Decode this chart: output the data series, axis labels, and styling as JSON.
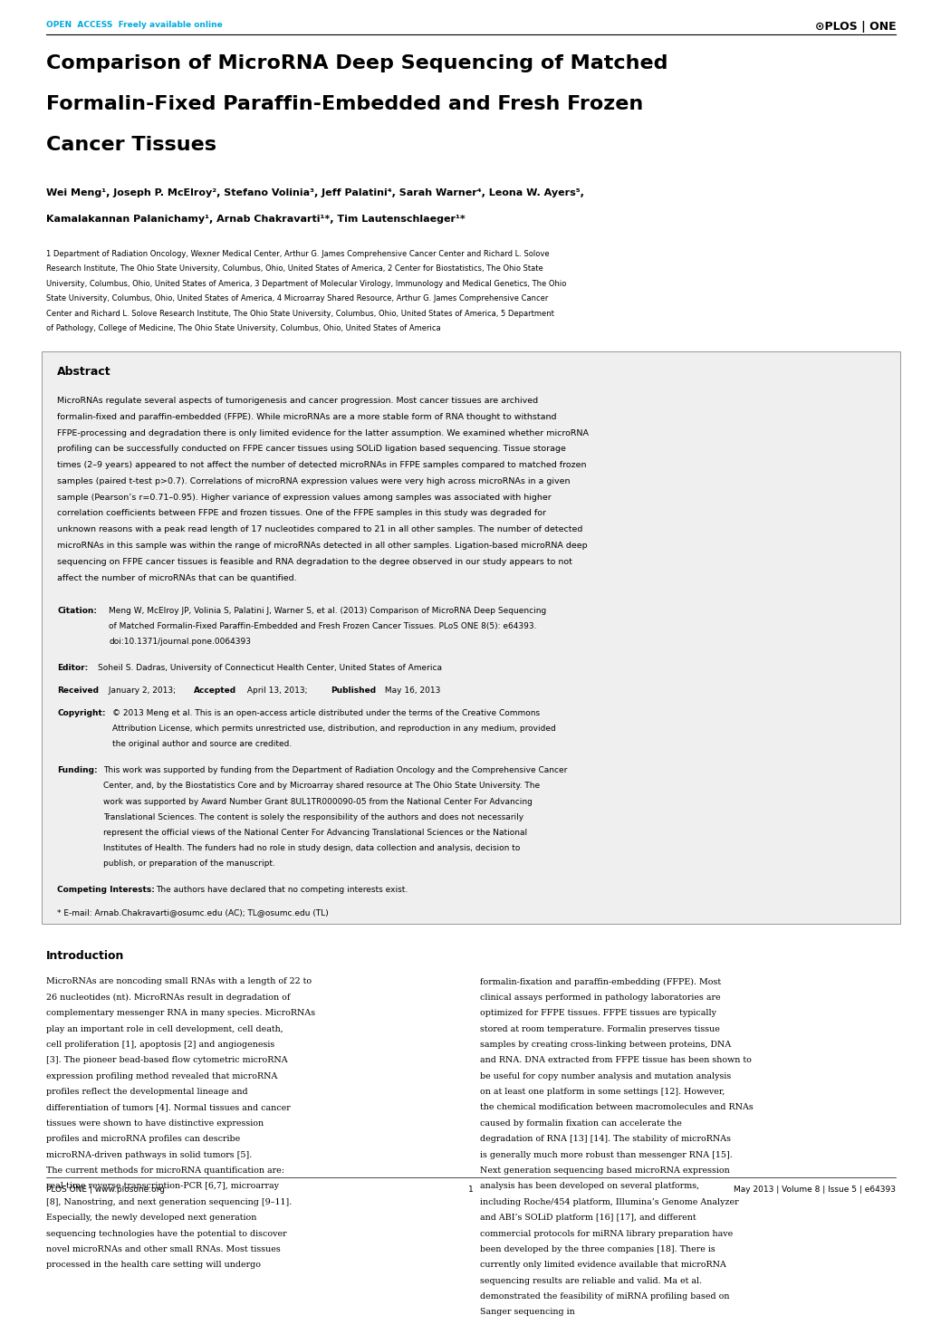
{
  "bg_color": "#ffffff",
  "header_open_access_text": "OPEN  ACCESS  Freely available online",
  "header_open_access_color": "#00aadd",
  "title_line1": "Comparison of MicroRNA Deep Sequencing of Matched",
  "title_line2": "Formalin-Fixed Paraffin-Embedded and Fresh Frozen",
  "title_line3": "Cancer Tissues",
  "authors_line1": "Wei Meng¹, Joseph P. McElroy², Stefano Volinia³, Jeff Palatini⁴, Sarah Warner⁴, Leona W. Ayers⁵,",
  "authors_line2": "Kamalakannan Palanichamy¹, Arnab Chakravarti¹*, Tim Lautenschlaeger¹*",
  "affiliations": "1 Department of Radiation Oncology, Wexner Medical Center, Arthur G. James Comprehensive Cancer Center and Richard L. Solove Research Institute, The Ohio State University, Columbus, Ohio, United States of America, 2 Center for Biostatistics, The Ohio State University, Columbus, Ohio, United States of America, 3 Department of Molecular Virology, Immunology and Medical Genetics, The Ohio State University, Columbus, Ohio, United States of America, 4 Microarray Shared Resource, Arthur G. James Comprehensive Cancer Center and Richard L. Solove Research Institute, The Ohio State University, Columbus, Ohio, United States of America, 5 Department of Pathology, College of Medicine, The Ohio State University, Columbus, Ohio, United States of America",
  "abstract_title": "Abstract",
  "abstract_text": "MicroRNAs regulate several aspects of tumorigenesis and cancer progression. Most cancer tissues are archived formalin-fixed and paraffin-embedded (FFPE). While microRNAs are a more stable form of RNA thought to withstand FFPE-processing and degradation there is only limited evidence for the latter assumption. We examined whether microRNA profiling can be successfully conducted on FFPE cancer tissues using SOLiD ligation based sequencing. Tissue storage times (2–9 years) appeared to not affect the number of detected microRNAs in FFPE samples compared to matched frozen samples (paired t-test p>0.7). Correlations of microRNA expression values were very high across microRNAs in a given sample (Pearson’s r=0.71–0.95). Higher variance of expression values among samples was associated with higher correlation coefficients between FFPE and frozen tissues. One of the FFPE samples in this study was degraded for unknown reasons with a peak read length of 17 nucleotides compared to 21 in all other samples. The number of detected microRNAs in this sample was within the range of microRNAs detected in all other samples. Ligation-based microRNA deep sequencing on FFPE cancer tissues is feasible and RNA degradation to the degree observed in our study appears to not affect the number of microRNAs that can be quantified.",
  "citation_label": "Citation:",
  "citation_text": "Meng W, McElroy JP, Volinia S, Palatini J, Warner S, et al. (2013) Comparison of MicroRNA Deep Sequencing of Matched Formalin-Fixed Paraffin-Embedded and Fresh Frozen Cancer Tissues. PLoS ONE 8(5): e64393. doi:10.1371/journal.pone.0064393",
  "editor_label": "Editor:",
  "editor_text": "Soheil S. Dadras, University of Connecticut Health Center, United States of America",
  "received_label": "Received",
  "received_text": " January 2, 2013; ",
  "accepted_label": "Accepted",
  "accepted_text": " April 13, 2013; ",
  "published_label": "Published",
  "published_text": " May 16, 2013",
  "copyright_label": "Copyright:",
  "copyright_text": "© 2013 Meng et al. This is an open-access article distributed under the terms of the Creative Commons Attribution License, which permits unrestricted use, distribution, and reproduction in any medium, provided the original author and source are credited.",
  "funding_label": "Funding:",
  "funding_text": "This work was supported by funding from the Department of Radiation Oncology and the Comprehensive Cancer Center, and, by the Biostatistics Core and by Microarray shared resource at The Ohio State University. The work was supported by Award Number Grant 8UL1TR000090-05 from the National Center For Advancing Translational Sciences. The content is solely the responsibility of the authors and does not necessarily represent the official views of the National Center For Advancing Translational Sciences or the National Institutes of Health. The funders had no role in study design, data collection and analysis, decision to publish, or preparation of the manuscript.",
  "competing_label": "Competing Interests:",
  "competing_text": "The authors have declared that no competing interests exist.",
  "email_text": "* E-mail: Arnab.Chakravarti@osumc.edu (AC); TL@osumc.edu (TL)",
  "intro_title": "Introduction",
  "intro_col1": "MicroRNAs are noncoding small RNAs with a length of 22 to 26 nucleotides (nt). MicroRNAs result in degradation of complementary messenger RNA in many species. MicroRNAs play an important role in cell development, cell death, cell proliferation [1], apoptosis [2] and angiogenesis [3]. The pioneer bead-based flow cytometric microRNA expression profiling method revealed that microRNA profiles reflect the developmental lineage and differentiation of tumors [4]. Normal tissues and cancer tissues were shown to have distinctive expression profiles and microRNA profiles can describe microRNA-driven pathways in solid tumors [5].\n   The current methods for microRNA quantification are: real-time reverse transcription-PCR [6,7], microarray [8], Nanostring, and next generation sequencing [9–11]. Especially, the newly developed next generation sequencing technologies have the potential to discover novel microRNAs and other small RNAs. Most tissues processed in the health care setting will undergo",
  "intro_col2": "formalin-fixation and paraffin-embedding (FFPE). Most clinical assays performed in pathology laboratories are optimized for FFPE tissues. FFPE tissues are typically stored at room temperature. Formalin preserves tissue samples by creating cross-linking between proteins, DNA and RNA. DNA extracted from FFPE tissue has been shown to be useful for copy number analysis and mutation analysis on at least one platform in some settings [12]. However, the chemical modification between macromolecules and RNAs caused by formalin fixation can accelerate the degradation of RNA [13] [14]. The stability of microRNAs is generally much more robust than messenger RNA [15]. Next generation sequencing based microRNA expression analysis has been developed on several platforms, including Roche/454 platform, Illumina’s Genome Analyzer and ABI’s SOLiD platform [16] [17], and different commercial protocols for miRNA library preparation have been developed by the three companies [18]. There is currently only limited evidence available that microRNA sequencing results are reliable and valid. Ma et al. demonstrated the feasibility of miRNA profiling based on Sanger sequencing in",
  "footer_left": "PLOS ONE | www.plosone.org",
  "footer_center": "1",
  "footer_right": "May 2013 | Volume 8 | Issue 5 | e64393"
}
